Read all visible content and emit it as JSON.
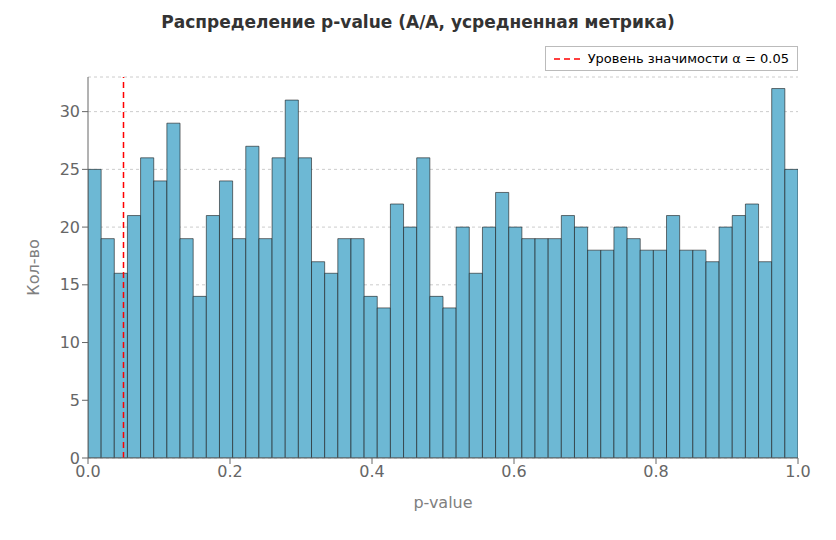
{
  "chart_data": {
    "type": "histogram",
    "title": "Распределение p-value (А/А, усредненная метрика)",
    "xlabel": "p-value",
    "ylabel": "Кол-во",
    "bins": [
      0,
      0.018519,
      0.037037,
      0.055556,
      0.074074,
      0.092593,
      0.111111,
      0.12963,
      0.148148,
      0.166667,
      0.185185,
      0.203704,
      0.222222,
      0.240741,
      0.259259,
      0.277778,
      0.296296,
      0.314815,
      0.333333,
      0.351852,
      0.37037,
      0.388889,
      0.407407,
      0.425926,
      0.444444,
      0.462963,
      0.481481,
      0.5,
      0.518519,
      0.537037,
      0.555556,
      0.574074,
      0.592593,
      0.611111,
      0.62963,
      0.648148,
      0.666667,
      0.685185,
      0.703704,
      0.722222,
      0.740741,
      0.759259,
      0.777778,
      0.796296,
      0.814815,
      0.833333,
      0.851852,
      0.87037,
      0.888889,
      0.907407,
      0.925926,
      0.944444,
      0.962963,
      0.981481,
      1
    ],
    "values": [
      25,
      19,
      16,
      21,
      26,
      24,
      29,
      19,
      14,
      21,
      24,
      19,
      27,
      19,
      26,
      31,
      26,
      17,
      16,
      19,
      19,
      14,
      13,
      22,
      20,
      26,
      14,
      13,
      20,
      16,
      20,
      23,
      20,
      19,
      19,
      19,
      21,
      20,
      18,
      18,
      20,
      19,
      18,
      18,
      21,
      18,
      18,
      17,
      20,
      21,
      22,
      17,
      32,
      25
    ],
    "color": "#6db8d4",
    "edge_color": "#1a1a1a",
    "vlines": [
      {
        "x": 0.05,
        "name": "Уровень значимости α = 0.05",
        "color": "red",
        "line_style": "dashed"
      }
    ],
    "xlim": [
      0.0,
      1.0
    ],
    "ylim": [
      0,
      33
    ],
    "xticks": [
      {
        "value": 0,
        "label": "0.0"
      },
      0.2,
      0.4,
      0.6,
      0.8,
      {
        "value": 1,
        "label": "1.0"
      }
    ],
    "yticks": [
      0,
      5,
      10,
      15,
      20,
      25,
      30
    ],
    "grid": "y",
    "legend": "upper right"
  }
}
